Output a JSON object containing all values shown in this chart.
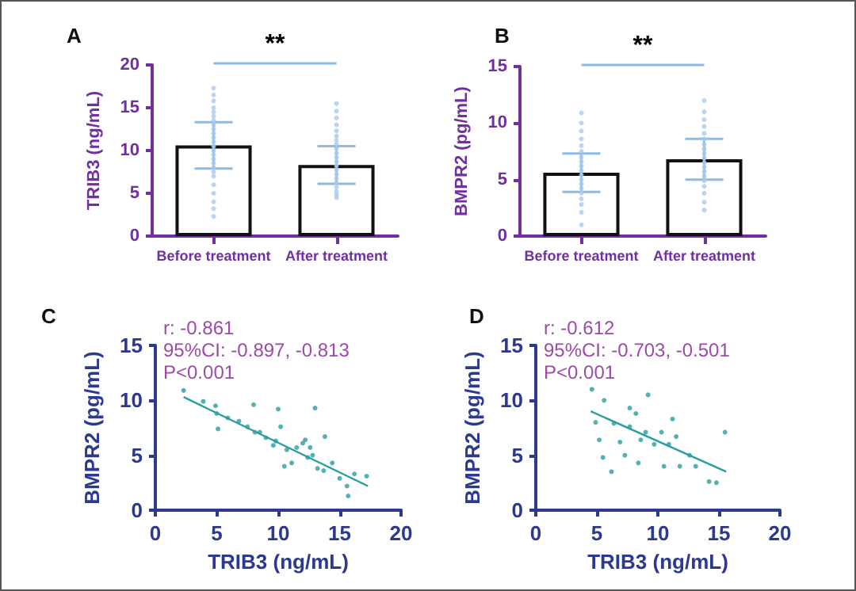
{
  "chart_data": [
    {
      "type": "bar",
      "title": "A",
      "ylabel": "TRIB3 (ng/mL)",
      "categories": [
        "Before treatment",
        "After treatment"
      ],
      "ylim": [
        0,
        20
      ],
      "yticks": [
        0,
        5,
        10,
        15,
        20
      ],
      "grid": false,
      "annotations": [
        "**"
      ],
      "series": [
        {
          "color": "#ffffff",
          "values": [
            10.6,
            8.3
          ],
          "errors": [
            2.7,
            2.2
          ]
        },
        {
          "type": "scatter",
          "marker": "circle",
          "color": "#a9cbe8",
          "x": [
            "Before treatment",
            "Before treatment",
            "Before treatment",
            "Before treatment",
            "Before treatment",
            "Before treatment",
            "Before treatment",
            "Before treatment",
            "Before treatment",
            "Before treatment",
            "Before treatment",
            "Before treatment",
            "Before treatment",
            "Before treatment",
            "Before treatment",
            "Before treatment",
            "Before treatment",
            "Before treatment",
            "Before treatment",
            "Before treatment",
            "Before treatment",
            "Before treatment",
            "Before treatment",
            "Before treatment",
            "Before treatment",
            "After treatment",
            "After treatment",
            "After treatment",
            "After treatment",
            "After treatment",
            "After treatment",
            "After treatment",
            "After treatment",
            "After treatment",
            "After treatment",
            "After treatment",
            "After treatment",
            "After treatment",
            "After treatment",
            "After treatment",
            "After treatment",
            "After treatment",
            "After treatment",
            "After treatment",
            "After treatment",
            "After treatment"
          ],
          "values": [
            17.3,
            16.5,
            15.8,
            15.0,
            14.5,
            14.0,
            13.5,
            13.0,
            12.5,
            12.0,
            11.5,
            11.0,
            10.5,
            10.0,
            9.5,
            9.0,
            8.5,
            8.0,
            7.5,
            7.0,
            6.0,
            5.0,
            4.0,
            3.2,
            2.3,
            15.5,
            14.6,
            13.8,
            13.0,
            12.3,
            11.7,
            11.2,
            10.7,
            10.2,
            9.7,
            9.2,
            8.7,
            8.2,
            7.7,
            7.2,
            6.7,
            6.2,
            5.7,
            5.2,
            4.8,
            4.5
          ]
        }
      ]
    },
    {
      "type": "bar",
      "title": "B",
      "ylabel": "BMPR2 (pg/mL)",
      "categories": [
        "Before treatment",
        "After treatment"
      ],
      "ylim": [
        0,
        15
      ],
      "yticks": [
        0,
        5,
        10,
        15
      ],
      "grid": false,
      "annotations": [
        "**"
      ],
      "series": [
        {
          "color": "#ffffff",
          "values": [
            5.6,
            6.8
          ],
          "errors": [
            1.7,
            1.8
          ]
        },
        {
          "type": "scatter",
          "marker": "circle",
          "color": "#a9cbe8",
          "x": [
            "Before treatment",
            "Before treatment",
            "Before treatment",
            "Before treatment",
            "Before treatment",
            "Before treatment",
            "Before treatment",
            "Before treatment",
            "Before treatment",
            "Before treatment",
            "Before treatment",
            "Before treatment",
            "Before treatment",
            "Before treatment",
            "Before treatment",
            "Before treatment",
            "Before treatment",
            "Before treatment",
            "Before treatment",
            "After treatment",
            "After treatment",
            "After treatment",
            "After treatment",
            "After treatment",
            "After treatment",
            "After treatment",
            "After treatment",
            "After treatment",
            "After treatment",
            "After treatment",
            "After treatment",
            "After treatment",
            "After treatment",
            "After treatment",
            "After treatment",
            "After treatment",
            "After treatment",
            "After treatment"
          ],
          "values": [
            10.9,
            10.0,
            9.3,
            8.6,
            8.0,
            7.5,
            7.0,
            6.6,
            6.2,
            5.8,
            5.4,
            5.0,
            4.6,
            4.2,
            3.8,
            3.3,
            2.8,
            2.1,
            1.0,
            12.0,
            11.0,
            10.3,
            9.7,
            9.1,
            8.6,
            8.1,
            7.7,
            7.3,
            6.9,
            6.5,
            6.1,
            5.7,
            5.3,
            4.9,
            4.4,
            3.8,
            3.0,
            2.3
          ]
        }
      ]
    },
    {
      "type": "scatter",
      "title": "C",
      "xlabel": "TRIB3 (ng/mL)",
      "ylabel": "BMPR2 (pg/mL)",
      "xlim": [
        0,
        20
      ],
      "xticks": [
        0,
        5,
        10,
        15,
        20
      ],
      "ylim": [
        0,
        15
      ],
      "yticks": [
        0,
        5,
        10,
        15
      ],
      "grid": false,
      "annotations": [
        "r: -0.861",
        "95%CI: -0.897, -0.813",
        "P<0.001"
      ],
      "series": [
        {
          "marker": "circle",
          "color": "#2a9d9f",
          "x": [
            2.3,
            3.9,
            4.9,
            5.1,
            5.0,
            6.8,
            8.0,
            8.1,
            9.0,
            10.0,
            10.2,
            9.6,
            10.7,
            11.1,
            12.2,
            13.0,
            12.8,
            13.2,
            13.8,
            13.7,
            14.4,
            15.0,
            15.6,
            15.7,
            16.2,
            17.2,
            7.5,
            8.5,
            9.8,
            11.5,
            12.4,
            5.9,
            10.5,
            12.0,
            12.6
          ],
          "values": [
            10.9,
            9.9,
            9.5,
            7.4,
            8.8,
            8.1,
            9.6,
            7.1,
            6.6,
            9.2,
            7.6,
            5.9,
            5.5,
            4.3,
            6.4,
            9.3,
            5.0,
            3.8,
            6.7,
            3.6,
            4.3,
            2.9,
            2.2,
            1.3,
            3.3,
            3.1,
            7.6,
            7.1,
            6.3,
            5.7,
            4.8,
            8.4,
            4.0,
            6.1,
            5.7
          ]
        },
        {
          "type": "line",
          "color": "#2a9d9f",
          "x": [
            2.3,
            17.3
          ],
          "values": [
            10.3,
            2.2
          ]
        }
      ]
    },
    {
      "type": "scatter",
      "title": "D",
      "xlabel": "TRIB3 (ng/mL)",
      "ylabel": "BMPR2 (pg/mL)",
      "xlim": [
        0,
        20
      ],
      "xticks": [
        0,
        5,
        10,
        15,
        20
      ],
      "ylim": [
        0,
        15
      ],
      "yticks": [
        0,
        5,
        10,
        15
      ],
      "grid": false,
      "annotations": [
        "r: -0.612",
        "95%CI: -0.703, -0.501",
        "P<0.001"
      ],
      "series": [
        {
          "marker": "circle",
          "color": "#2a9d9f",
          "x": [
            4.6,
            5.6,
            5.2,
            5.5,
            6.2,
            6.9,
            7.3,
            7.7,
            8.2,
            8.4,
            9.2,
            9.0,
            9.7,
            10.3,
            10.5,
            11.2,
            11.5,
            11.8,
            12.6,
            13.1,
            14.2,
            14.8,
            15.5,
            6.4,
            8.6,
            10.9,
            4.9,
            7.7
          ],
          "values": [
            11.0,
            10.0,
            6.4,
            4.8,
            3.5,
            6.2,
            5.0,
            9.3,
            8.8,
            4.3,
            10.5,
            7.1,
            6.0,
            7.1,
            4.0,
            8.3,
            6.7,
            4.0,
            5.0,
            4.0,
            2.6,
            2.5,
            7.1,
            7.9,
            6.4,
            6.0,
            8.0,
            7.6
          ]
        },
        {
          "type": "line",
          "color": "#2a9d9f",
          "x": [
            4.5,
            15.6
          ],
          "values": [
            9.0,
            3.5
          ]
        }
      ]
    }
  ]
}
